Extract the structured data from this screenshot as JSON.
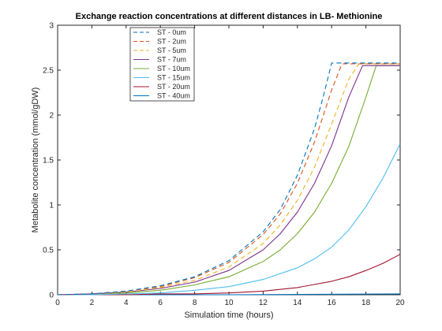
{
  "chart_data": {
    "type": "line",
    "title": "Exchange reaction concentrations at different distances in LB- Methionine",
    "xlabel": "Simulation time (hours)",
    "ylabel": "Metabolite concentration (mmol/gDW)",
    "xlim": [
      0,
      20
    ],
    "ylim": [
      0,
      3
    ],
    "xticks": [
      0,
      2,
      4,
      6,
      8,
      10,
      12,
      14,
      16,
      18,
      20
    ],
    "yticks": [
      0,
      0.5,
      1,
      1.5,
      2,
      2.5,
      3
    ],
    "xtick_labels": [
      "0",
      "2",
      "4",
      "6",
      "8",
      "10",
      "12",
      "14",
      "16",
      "18",
      "20"
    ],
    "ytick_labels": [
      "0",
      "0.5",
      "1",
      "1.5",
      "2",
      "2.5",
      "3"
    ],
    "grid": false,
    "legend_position": "top-left",
    "series": [
      {
        "name": "ST - 0um",
        "color": "#0072BD",
        "dash": "dashed",
        "x": [
          0,
          2,
          4,
          6,
          8,
          10,
          12,
          13,
          14,
          15,
          15.5,
          16,
          17,
          18,
          19,
          20
        ],
        "y": [
          0,
          0.01,
          0.04,
          0.1,
          0.2,
          0.38,
          0.7,
          0.95,
          1.33,
          1.85,
          2.2,
          2.58,
          2.58,
          2.58,
          2.58,
          2.58
        ]
      },
      {
        "name": "ST - 2um",
        "color": "#D95319",
        "dash": "dashed",
        "x": [
          0,
          2,
          4,
          6,
          8,
          10,
          12,
          13,
          14,
          15,
          16,
          16.6,
          17,
          18,
          19,
          20
        ],
        "y": [
          0,
          0.01,
          0.04,
          0.09,
          0.19,
          0.36,
          0.67,
          0.9,
          1.24,
          1.7,
          2.28,
          2.57,
          2.57,
          2.57,
          2.57,
          2.57
        ]
      },
      {
        "name": "ST - 5um",
        "color": "#EDB120",
        "dash": "dashed",
        "x": [
          0,
          2,
          4,
          6,
          8,
          10,
          12,
          13,
          14,
          15,
          16,
          17,
          17.6,
          18,
          19,
          20
        ],
        "y": [
          0,
          0.01,
          0.03,
          0.08,
          0.16,
          0.31,
          0.57,
          0.78,
          1.05,
          1.42,
          1.9,
          2.4,
          2.57,
          2.57,
          2.57,
          2.57
        ]
      },
      {
        "name": "ST - 7um",
        "color": "#7E2F8E",
        "dash": "solid",
        "x": [
          0,
          2,
          4,
          6,
          8,
          10,
          12,
          13,
          14,
          15,
          16,
          17,
          17.8,
          18,
          19,
          20
        ],
        "y": [
          0,
          0.01,
          0.03,
          0.07,
          0.14,
          0.27,
          0.5,
          0.68,
          0.92,
          1.24,
          1.66,
          2.2,
          2.55,
          2.55,
          2.55,
          2.55
        ]
      },
      {
        "name": "ST - 10um",
        "color": "#77AC30",
        "dash": "solid",
        "x": [
          0,
          2,
          4,
          6,
          8,
          10,
          12,
          13,
          14,
          15,
          16,
          17,
          18,
          18.6,
          19,
          20
        ],
        "y": [
          0,
          0.01,
          0.02,
          0.05,
          0.11,
          0.2,
          0.37,
          0.5,
          0.68,
          0.92,
          1.24,
          1.65,
          2.2,
          2.55,
          2.55,
          2.55
        ]
      },
      {
        "name": "ST - 15um",
        "color": "#4DBEEE",
        "dash": "solid",
        "x": [
          0,
          2,
          4,
          6,
          8,
          10,
          12,
          14,
          15,
          16,
          17,
          18,
          19,
          20
        ],
        "y": [
          0,
          0,
          0.01,
          0.02,
          0.05,
          0.09,
          0.17,
          0.3,
          0.4,
          0.53,
          0.72,
          0.98,
          1.3,
          1.68
        ]
      },
      {
        "name": "ST - 20um",
        "color": "#A2142F",
        "dash": "solid",
        "x": [
          0,
          2,
          4,
          6,
          8,
          10,
          12,
          14,
          16,
          17,
          18,
          19,
          20
        ],
        "y": [
          0,
          0,
          0,
          0.01,
          0.01,
          0.02,
          0.04,
          0.08,
          0.15,
          0.2,
          0.27,
          0.35,
          0.45
        ]
      },
      {
        "name": "ST - 40um",
        "color": "#0072BD",
        "dash": "solid",
        "x": [
          0,
          10,
          20
        ],
        "y": [
          0,
          0,
          0.01
        ]
      }
    ]
  }
}
